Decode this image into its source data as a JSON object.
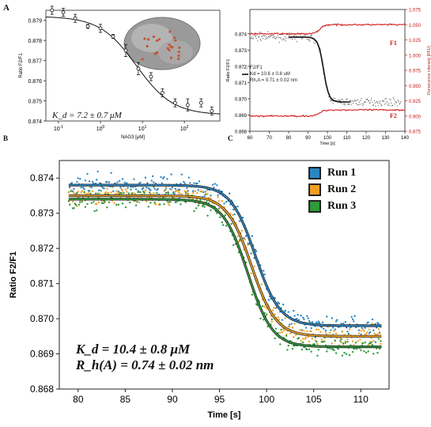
{
  "panel_a": {
    "letter": "A",
    "kd_label": "K_d = 7.2 ± 0.7 μM",
    "chart_data": {
      "type": "scatter",
      "xlabel": "NAG3 [μM]",
      "ylabel": "Ratio F2/F1",
      "xscale": "log",
      "xlim": [
        0.05,
        700
      ],
      "ylim": [
        0.874,
        0.8795
      ],
      "yticks": [
        "0.879",
        "0.878",
        "0.877",
        "0.876",
        "0.875",
        "0.874"
      ],
      "xticks": [
        "10^-1",
        "10^0",
        "10^1",
        "10^2"
      ],
      "points": [
        {
          "x": 0.07,
          "y": 0.8795,
          "err": 0.0002
        },
        {
          "x": 0.13,
          "y": 0.8794,
          "err": 0.0002
        },
        {
          "x": 0.25,
          "y": 0.8791,
          "err": 0.0002
        },
        {
          "x": 0.5,
          "y": 0.8787,
          "err": 0.0001
        },
        {
          "x": 1.0,
          "y": 0.8786,
          "err": 0.0002
        },
        {
          "x": 2.0,
          "y": 0.8782,
          "err": 0.0001
        },
        {
          "x": 4.0,
          "y": 0.8775,
          "err": 0.0003
        },
        {
          "x": 8.0,
          "y": 0.8766,
          "err": 0.0003
        },
        {
          "x": 16.0,
          "y": 0.8762,
          "err": 0.0002
        },
        {
          "x": 30.0,
          "y": 0.8754,
          "err": 0.0002
        },
        {
          "x": 60.0,
          "y": 0.8749,
          "err": 0.0002
        },
        {
          "x": 120.0,
          "y": 0.8748,
          "err": 0.0003
        },
        {
          "x": 250.0,
          "y": 0.8749,
          "err": 0.0002
        },
        {
          "x": 450.0,
          "y": 0.8745,
          "err": 0.0002
        }
      ],
      "fit": {
        "top": 0.8792,
        "bottom": 0.8743,
        "kd": 7.2
      }
    }
  },
  "panel_b": {
    "letter_partial": "B",
    "fit_legend": [
      "F2/F1",
      "Kd = 10.6 ± 0.8 uM",
      "Rh,A = 0.71 ± 0.02 nm"
    ],
    "label_f1": "F1",
    "label_f2": "F2",
    "chart_data": {
      "type": "line",
      "xlabel": "Time [s]",
      "ylabel": "Ratio F2/F1",
      "y2label": "Floreecence intensity [RFU]",
      "xlim": [
        60,
        140
      ],
      "ylim": [
        0.868,
        0.8755
      ],
      "y2lim": [
        0.875,
        1.075
      ],
      "xticks": [
        60,
        70,
        80,
        90,
        100,
        110,
        120,
        130,
        140
      ],
      "yticks": [
        "0.874",
        "0.873",
        "0.872",
        "0.871",
        "0.870",
        "0.869",
        "0.868"
      ],
      "y2ticks": [
        "1.075",
        "1.050",
        "1.025",
        "1.000",
        "0.975",
        "0.950",
        "0.925",
        "0.900",
        "0.875"
      ],
      "ratio_high": 0.8738,
      "ratio_low": 0.8698,
      "transition_center": 98,
      "f1_level_before": 1.035,
      "f1_level_after": 1.05,
      "f2_level_before": 0.9,
      "f2_level_after": 0.91
    }
  },
  "panel_c": {
    "letter_partial": "C",
    "kd_text": "K_d     = 10.4 ± 0.8 μM",
    "rh_text": "R_h(A) = 0.74 ± 0.02 nm",
    "chart_data": {
      "type": "scatter",
      "xlabel": "Time [s]",
      "ylabel": "Ratio F2/F1",
      "xlim": [
        78,
        113
      ],
      "ylim": [
        0.868,
        0.8745
      ],
      "xticks": [
        80,
        85,
        90,
        95,
        100,
        105,
        110
      ],
      "yticks": [
        0.874,
        0.873,
        0.872,
        0.871,
        0.87,
        0.869,
        0.868
      ],
      "series": [
        {
          "name": "Run 1",
          "color": "#2a86c3",
          "high": 0.8738,
          "low": 0.8698,
          "center": 98.8
        },
        {
          "name": "Run 2",
          "color": "#f0a020",
          "high": 0.8735,
          "low": 0.8695,
          "center": 98.4
        },
        {
          "name": "Run 3",
          "color": "#2e9a3a",
          "high": 0.8734,
          "low": 0.8692,
          "center": 98.0
        }
      ]
    }
  }
}
